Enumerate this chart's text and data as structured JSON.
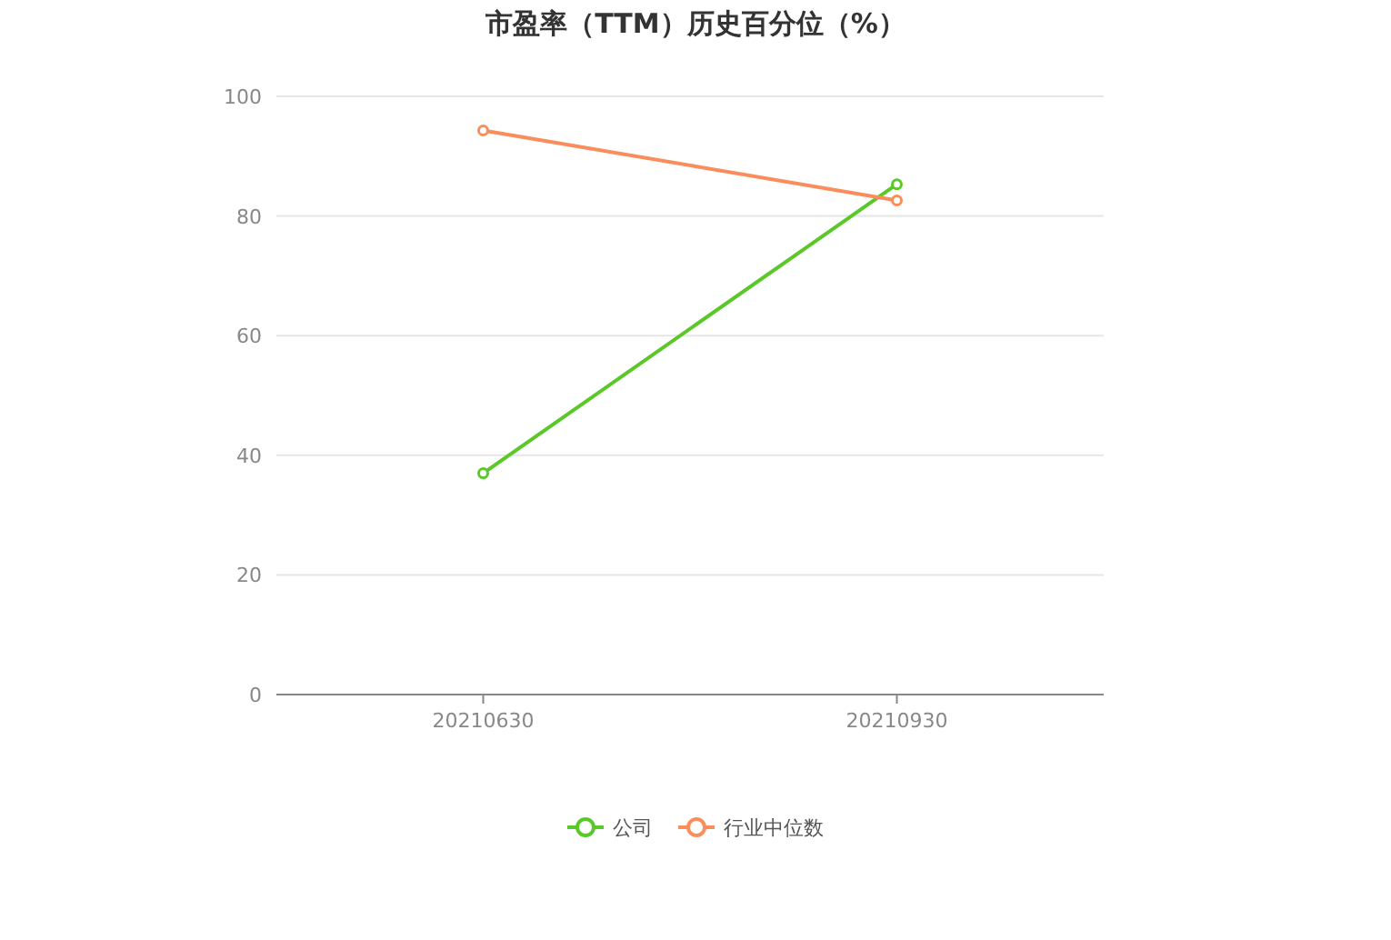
{
  "chart_data": {
    "type": "line",
    "title": "市盈率（TTM）历史百分位（%）",
    "categories": [
      "20210630",
      "20210930"
    ],
    "series": [
      {
        "name": "公司",
        "color": "#5ac828",
        "values": [
          37.0,
          85.3
        ]
      },
      {
        "name": "行业中位数",
        "color": "#f98d5b",
        "values": [
          94.3,
          82.6
        ]
      }
    ],
    "ylim": [
      0,
      100
    ],
    "yticks": [
      0,
      20,
      40,
      60,
      80,
      100
    ],
    "grid": "y",
    "legend": "bottom",
    "marker": "circle"
  }
}
